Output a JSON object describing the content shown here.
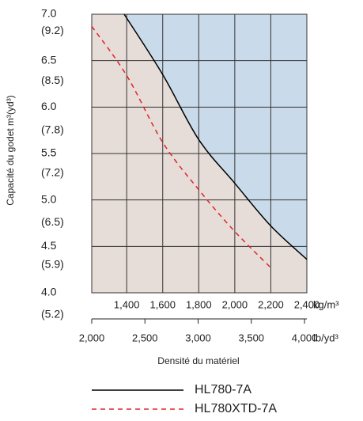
{
  "chart_data": {
    "type": "line",
    "ylabel": "Capacité du godet m³(yd³)",
    "xlabel": "Densité du matériel",
    "xunit": "kg/m³",
    "x2unit": "lb/yd³",
    "xlim": [
      1206,
      2400
    ],
    "xticks": [
      {
        "value": 1400,
        "label": "1,400"
      },
      {
        "value": 1600,
        "label": "1,600"
      },
      {
        "value": 1800,
        "label": "1,800"
      },
      {
        "value": 2000,
        "label": "2,000"
      },
      {
        "value": 2200,
        "label": "2,200"
      },
      {
        "value": 2400,
        "label": "2,400"
      }
    ],
    "x2lim": [
      2000,
      4022
    ],
    "x2ticks": [
      {
        "value": 2000,
        "label": "2,000"
      },
      {
        "value": 2500,
        "label": "2,500"
      },
      {
        "value": 3000,
        "label": "3,000"
      },
      {
        "value": 3500,
        "label": "3,500"
      },
      {
        "value": 4000,
        "label": "4,000"
      }
    ],
    "ylim": [
      4,
      7
    ],
    "yticks": [
      {
        "value": 7,
        "label": "7.0"
      },
      6.5,
      {
        "value": 6,
        "label": "6.0"
      },
      5.5,
      {
        "value": 5,
        "label": "5.0"
      },
      4.5,
      {
        "value": 4,
        "label": "4.0"
      }
    ],
    "y2lim": [
      5.23,
      9.16
    ],
    "y2ticks": [
      {
        "value": 9.2,
        "label": "(9.2)"
      },
      {
        "value": 8.5,
        "label": "(8.5)"
      },
      {
        "value": 7.8,
        "label": "(7.8)"
      },
      {
        "value": 7.2,
        "label": "(7.2)"
      },
      {
        "value": 6.5,
        "label": "(6.5)"
      },
      {
        "value": 5.9,
        "label": "(5.9)"
      },
      {
        "value": 5.2,
        "label": "(5.2)"
      }
    ],
    "grid": true,
    "background": "#e6dcd8",
    "region_color": "#c9dbea",
    "series": [
      {
        "name": "HL780-7A",
        "color": "#000000",
        "dashed": false,
        "x": [
          1386,
          1600,
          1800,
          2000,
          2200,
          2400
        ],
        "values": [
          7.0,
          6.35,
          5.65,
          5.18,
          4.72,
          4.36
        ]
      },
      {
        "name": "HL780XTD-7A",
        "color": "#e0252b",
        "dashed": true,
        "x": [
          1206,
          1400,
          1600,
          1800,
          2000,
          2200
        ],
        "values": [
          6.87,
          6.34,
          5.62,
          5.11,
          4.66,
          4.27
        ]
      }
    ]
  }
}
